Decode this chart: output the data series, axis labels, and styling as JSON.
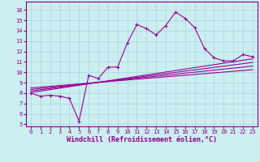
{
  "xlabel": "Windchill (Refroidissement éolien,°C)",
  "bg_color": "#cceef0",
  "grid_color": "#aadddd",
  "line_color": "#990099",
  "x_data": [
    0,
    1,
    2,
    3,
    4,
    5,
    6,
    7,
    8,
    9,
    10,
    11,
    12,
    13,
    14,
    15,
    16,
    17,
    18,
    19,
    20,
    21,
    22,
    23
  ],
  "y_main": [
    8.0,
    7.7,
    7.8,
    7.7,
    7.5,
    5.3,
    9.7,
    9.4,
    10.5,
    10.5,
    12.8,
    14.6,
    14.2,
    13.6,
    14.5,
    15.8,
    15.2,
    14.3,
    12.3,
    11.4,
    11.1,
    11.1,
    11.7,
    11.5
  ],
  "reg_lines": [
    {
      "x_start": 0,
      "y_start": 8.05,
      "x_end": 23,
      "y_end": 11.3
    },
    {
      "x_start": 0,
      "y_start": 8.2,
      "x_end": 23,
      "y_end": 10.95
    },
    {
      "x_start": 0,
      "y_start": 8.35,
      "x_end": 23,
      "y_end": 10.6
    },
    {
      "x_start": 0,
      "y_start": 8.5,
      "x_end": 23,
      "y_end": 10.25
    }
  ],
  "xlim": [
    -0.5,
    23.5
  ],
  "ylim": [
    4.8,
    16.8
  ],
  "yticks": [
    5,
    6,
    7,
    8,
    9,
    10,
    11,
    12,
    13,
    14,
    15,
    16
  ],
  "xticks": [
    0,
    1,
    2,
    3,
    4,
    5,
    6,
    7,
    8,
    9,
    10,
    11,
    12,
    13,
    14,
    15,
    16,
    17,
    18,
    19,
    20,
    21,
    22,
    23
  ],
  "font_color": "#880088",
  "tick_fontsize": 5.0,
  "xlabel_fontsize": 6.0
}
